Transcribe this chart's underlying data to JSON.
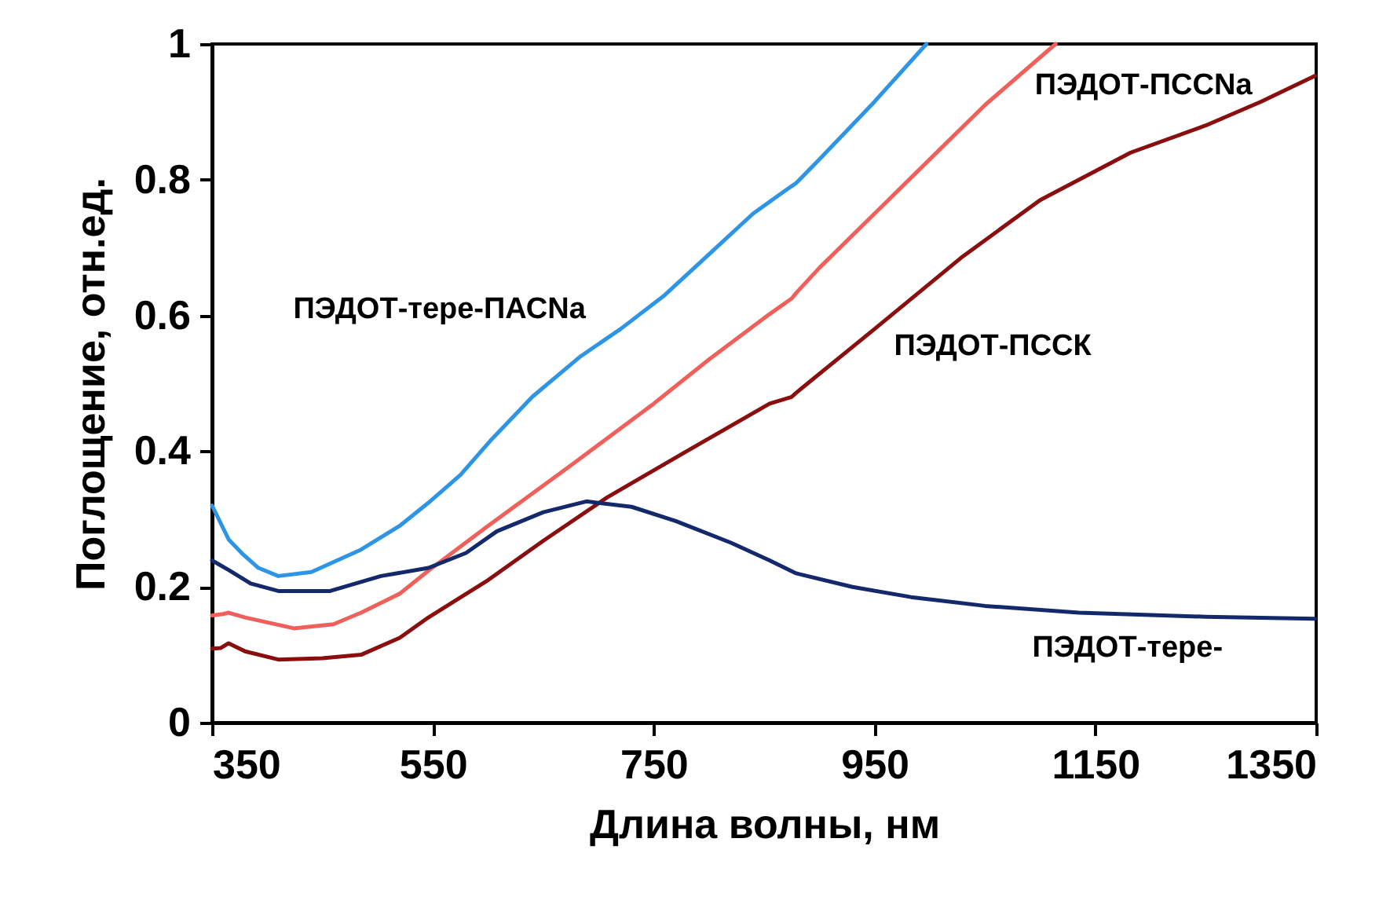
{
  "chart_data": {
    "type": "line",
    "xlabel": "Длина волны, нм",
    "ylabel": "Поглощение, отн.ед.",
    "xlim": [
      350,
      1350
    ],
    "xticks": [
      350,
      550,
      750,
      950,
      1150,
      1350
    ],
    "ylim": [
      0,
      1
    ],
    "yticks": [
      0,
      0.2,
      0.4,
      0.6,
      0.8,
      1
    ],
    "grid": false,
    "legend": false,
    "series": [
      {
        "name": "ПЭДОТ-тере-ПАСNa",
        "color": "#2e95e6",
        "x": [
          350,
          365,
          378,
          392,
          410,
          440,
          485,
          520,
          546,
          575,
          603,
          640,
          684,
          720,
          760,
          800,
          840,
          870,
          879,
          900,
          950,
          997
        ],
        "values": [
          0.32,
          0.27,
          0.248,
          0.228,
          0.216,
          0.222,
          0.255,
          0.29,
          0.324,
          0.365,
          0.417,
          0.48,
          0.54,
          0.58,
          0.63,
          0.69,
          0.75,
          0.785,
          0.795,
          0.83,
          0.915,
          1.0
        ]
      },
      {
        "name": "ПЭДОТ-ПССNa",
        "color": "#f0605a",
        "x": [
          350,
          360,
          365,
          380,
          424,
          460,
          485,
          520,
          546,
          600,
          674,
          750,
          800,
          855,
          875,
          879,
          900,
          950,
          1000,
          1050,
          1114
        ],
        "values": [
          0.158,
          0.16,
          0.162,
          0.155,
          0.139,
          0.145,
          0.162,
          0.19,
          0.224,
          0.29,
          0.378,
          0.47,
          0.535,
          0.602,
          0.625,
          0.633,
          0.67,
          0.75,
          0.83,
          0.91,
          1.0
        ]
      },
      {
        "name": "ПЭДОТ-ПССК",
        "color": "#8b0e0e",
        "x": [
          350,
          358,
          365,
          380,
          410,
          450,
          485,
          520,
          546,
          600,
          650,
          708,
          780,
          855,
          875,
          879,
          950,
          1030,
          1100,
          1182,
          1250,
          1300,
          1349
        ],
        "values": [
          0.109,
          0.11,
          0.117,
          0.105,
          0.093,
          0.095,
          0.1,
          0.125,
          0.155,
          0.21,
          0.268,
          0.332,
          0.4,
          0.47,
          0.48,
          0.486,
          0.58,
          0.687,
          0.77,
          0.84,
          0.88,
          0.915,
          0.953
        ]
      },
      {
        "name": "ПЭДОТ-тере-",
        "color": "#14296b",
        "x": [
          350,
          365,
          385,
          410,
          457,
          503,
          546,
          580,
          608,
          650,
          689,
          730,
          770,
          820,
          855,
          879,
          930,
          983,
          1050,
          1135,
          1250,
          1349
        ],
        "values": [
          0.239,
          0.225,
          0.205,
          0.194,
          0.194,
          0.216,
          0.228,
          0.25,
          0.282,
          0.31,
          0.326,
          0.318,
          0.297,
          0.265,
          0.239,
          0.22,
          0.2,
          0.185,
          0.172,
          0.162,
          0.156,
          0.153
        ]
      }
    ]
  }
}
